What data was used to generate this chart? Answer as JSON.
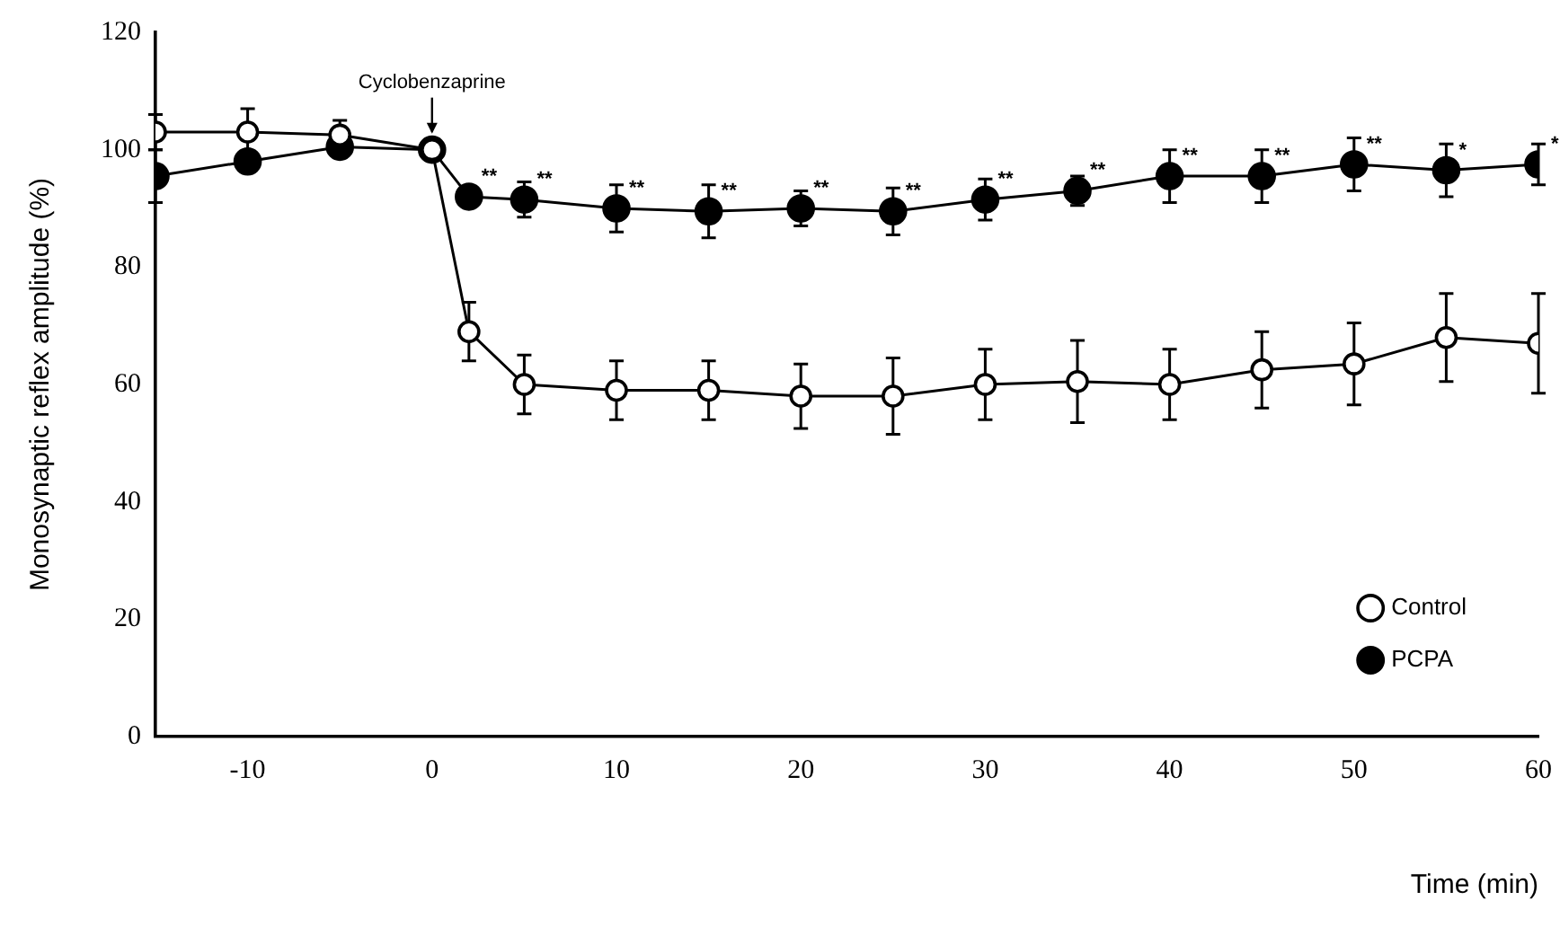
{
  "chart_data": {
    "type": "line",
    "xlabel": "Time (min)",
    "ylabel": "Monosynaptic reflex amplitude (%)",
    "x": [
      -15,
      -10,
      -5,
      0,
      2,
      5,
      10,
      15,
      20,
      25,
      30,
      35,
      40,
      45,
      50,
      55,
      60
    ],
    "series": [
      {
        "name": "Control",
        "color": "#000000",
        "values": [
          103,
          103,
          102.5,
          100,
          69,
          60,
          59,
          59,
          58,
          58,
          60,
          60.5,
          60,
          62.5,
          63.5,
          68,
          67
        ],
        "errors": [
          3,
          4,
          2.5,
          0,
          5,
          5,
          5,
          5,
          5.5,
          6.5,
          6,
          7,
          6,
          6.5,
          7,
          7.5,
          8.5
        ]
      },
      {
        "name": "PCPA",
        "color": "#000000",
        "values": [
          95.5,
          98,
          100.5,
          100,
          92,
          91.5,
          90,
          89.5,
          90,
          89.5,
          91.5,
          93,
          95.5,
          95.5,
          97.5,
          96.5,
          97.5
        ],
        "errors": [
          4.5,
          null,
          null,
          null,
          null,
          3,
          4,
          4.5,
          3,
          4,
          3.5,
          2.5,
          4.5,
          4.5,
          4.5,
          4.5,
          3.5
        ]
      }
    ],
    "xlim": [
      -15,
      60
    ],
    "xticks": [
      -10,
      0,
      10,
      20,
      30,
      40,
      50,
      60
    ],
    "ylim": [
      0,
      120
    ],
    "yticks": [
      0,
      20,
      40,
      60,
      80,
      100,
      120
    ],
    "grid": false,
    "legend": "bottom right",
    "marker": "circle",
    "line_style": "solid",
    "annotations": [
      {
        "text": "Cyclobenzaprine",
        "x": 0,
        "y": 100
      },
      {
        "text": "**",
        "x": 2,
        "y": 92
      },
      {
        "text": "**",
        "x": 5,
        "y": 91.5
      },
      {
        "text": "**",
        "x": 10,
        "y": 90
      },
      {
        "text": "**",
        "x": 15,
        "y": 89.5
      },
      {
        "text": "**",
        "x": 20,
        "y": 90
      },
      {
        "text": "**",
        "x": 25,
        "y": 89.5
      },
      {
        "text": "**",
        "x": 30,
        "y": 91.5
      },
      {
        "text": "**",
        "x": 35,
        "y": 93
      },
      {
        "text": "**",
        "x": 40,
        "y": 95.5
      },
      {
        "text": "**",
        "x": 45,
        "y": 95.5
      },
      {
        "text": "**",
        "x": 50,
        "y": 97.5
      },
      {
        "text": "*",
        "x": 55,
        "y": 96.5
      },
      {
        "text": "*",
        "x": 60,
        "y": 97.5
      }
    ]
  }
}
